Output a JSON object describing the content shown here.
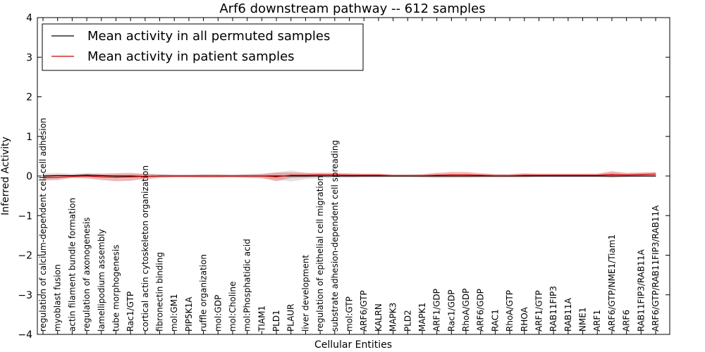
{
  "chart_data": {
    "type": "line",
    "title": "Arf6 downstream pathway -- 612 samples",
    "xlabel": "Cellular Entities",
    "ylabel": "Inferred Activity",
    "ylim": [
      -4,
      4
    ],
    "yticks": [
      "−4",
      "−3",
      "−2",
      "−1",
      "0",
      "1",
      "2",
      "3",
      "4"
    ],
    "grid": false,
    "legend_position": "top-left",
    "categories": [
      "regulation of calcium-dependent cell-cell adhesion",
      "myoblast fusion",
      "actin filament bundle formation",
      "regulation of axonogenesis",
      "lamellipodium assembly",
      "tube morphogenesis",
      "Rac1/GTP",
      "cortical actin cytoskeleton organization",
      "fibronectin binding",
      "mol:GM1",
      "PIP5K1A",
      "ruffle organization",
      "mol:GDP",
      "mol:Choline",
      "mol:Phosphatidic acid",
      "TIAM1",
      "PLD1",
      "PLAUR",
      "liver development",
      "regulation of epithelial cell migration",
      "substrate adhesion-dependent cell spreading",
      "mol:GTP",
      "ARF6/GTP",
      "KALRN",
      "MAPK3",
      "PLD2",
      "MAPK1",
      "ARF1/GDP",
      "Rac1/GDP",
      "RhoA/GDP",
      "ARF6/GDP",
      "RAC1",
      "RhoA/GTP",
      "RHOA",
      "ARF1/GTP",
      "RAB11FIP3",
      "RAB11A",
      "NME1",
      "ARF1",
      "ARF6/GTP/NME1/Tiam1",
      "ARF6",
      "RAB11FIP3/RAB11A",
      "ARF6/GTP/RAB11FIP3/RAB11A"
    ],
    "series": [
      {
        "name": "Mean activity in all permuted samples",
        "color": "#000000",
        "values": [
          0.0,
          0.01,
          0.01,
          0.02,
          0.01,
          0.0,
          0.0,
          -0.01,
          0.0,
          0.0,
          0.0,
          0.0,
          0.0,
          0.0,
          0.0,
          0.0,
          0.0,
          0.0,
          0.0,
          0.0,
          0.0,
          0.0,
          0.0,
          0.0,
          0.0,
          0.0,
          0.0,
          0.0,
          0.0,
          0.0,
          0.0,
          0.0,
          0.0,
          0.0,
          0.0,
          0.0,
          0.0,
          0.0,
          0.0,
          0.0,
          0.0,
          0.0,
          0.0
        ],
        "band": [
          0.07,
          0.07,
          0.05,
          0.05,
          0.04,
          0.04,
          0.04,
          0.08,
          0.05,
          0.04,
          0.04,
          0.04,
          0.04,
          0.04,
          0.05,
          0.06,
          0.09,
          0.14,
          0.08,
          0.06,
          0.05,
          0.04,
          0.04,
          0.04,
          0.03,
          0.03,
          0.03,
          0.03,
          0.03,
          0.03,
          0.03,
          0.03,
          0.03,
          0.03,
          0.03,
          0.03,
          0.03,
          0.03,
          0.03,
          0.03,
          0.03,
          0.03,
          0.03
        ],
        "band_color": "#c8c8c8"
      },
      {
        "name": "Mean activity in patient samples",
        "color": "#cc0000",
        "values": [
          -0.04,
          -0.03,
          -0.01,
          0.0,
          -0.02,
          -0.03,
          -0.02,
          -0.01,
          0.0,
          0.0,
          0.0,
          0.0,
          0.0,
          0.0,
          0.0,
          0.0,
          -0.02,
          0.02,
          0.02,
          0.03,
          0.03,
          0.02,
          0.02,
          0.02,
          0.01,
          0.01,
          0.01,
          0.02,
          0.03,
          0.03,
          0.02,
          0.01,
          0.01,
          0.02,
          0.02,
          0.02,
          0.02,
          0.02,
          0.02,
          0.04,
          0.03,
          0.04,
          0.05
        ],
        "band": [
          0.07,
          0.07,
          0.04,
          0.06,
          0.08,
          0.1,
          0.1,
          0.06,
          0.04,
          0.03,
          0.03,
          0.04,
          0.04,
          0.03,
          0.04,
          0.05,
          0.11,
          0.07,
          0.06,
          0.05,
          0.05,
          0.05,
          0.04,
          0.04,
          0.03,
          0.03,
          0.04,
          0.06,
          0.07,
          0.07,
          0.05,
          0.04,
          0.04,
          0.05,
          0.04,
          0.04,
          0.04,
          0.04,
          0.04,
          0.08,
          0.05,
          0.05,
          0.05
        ],
        "band_color": "#e07a7a"
      }
    ]
  }
}
